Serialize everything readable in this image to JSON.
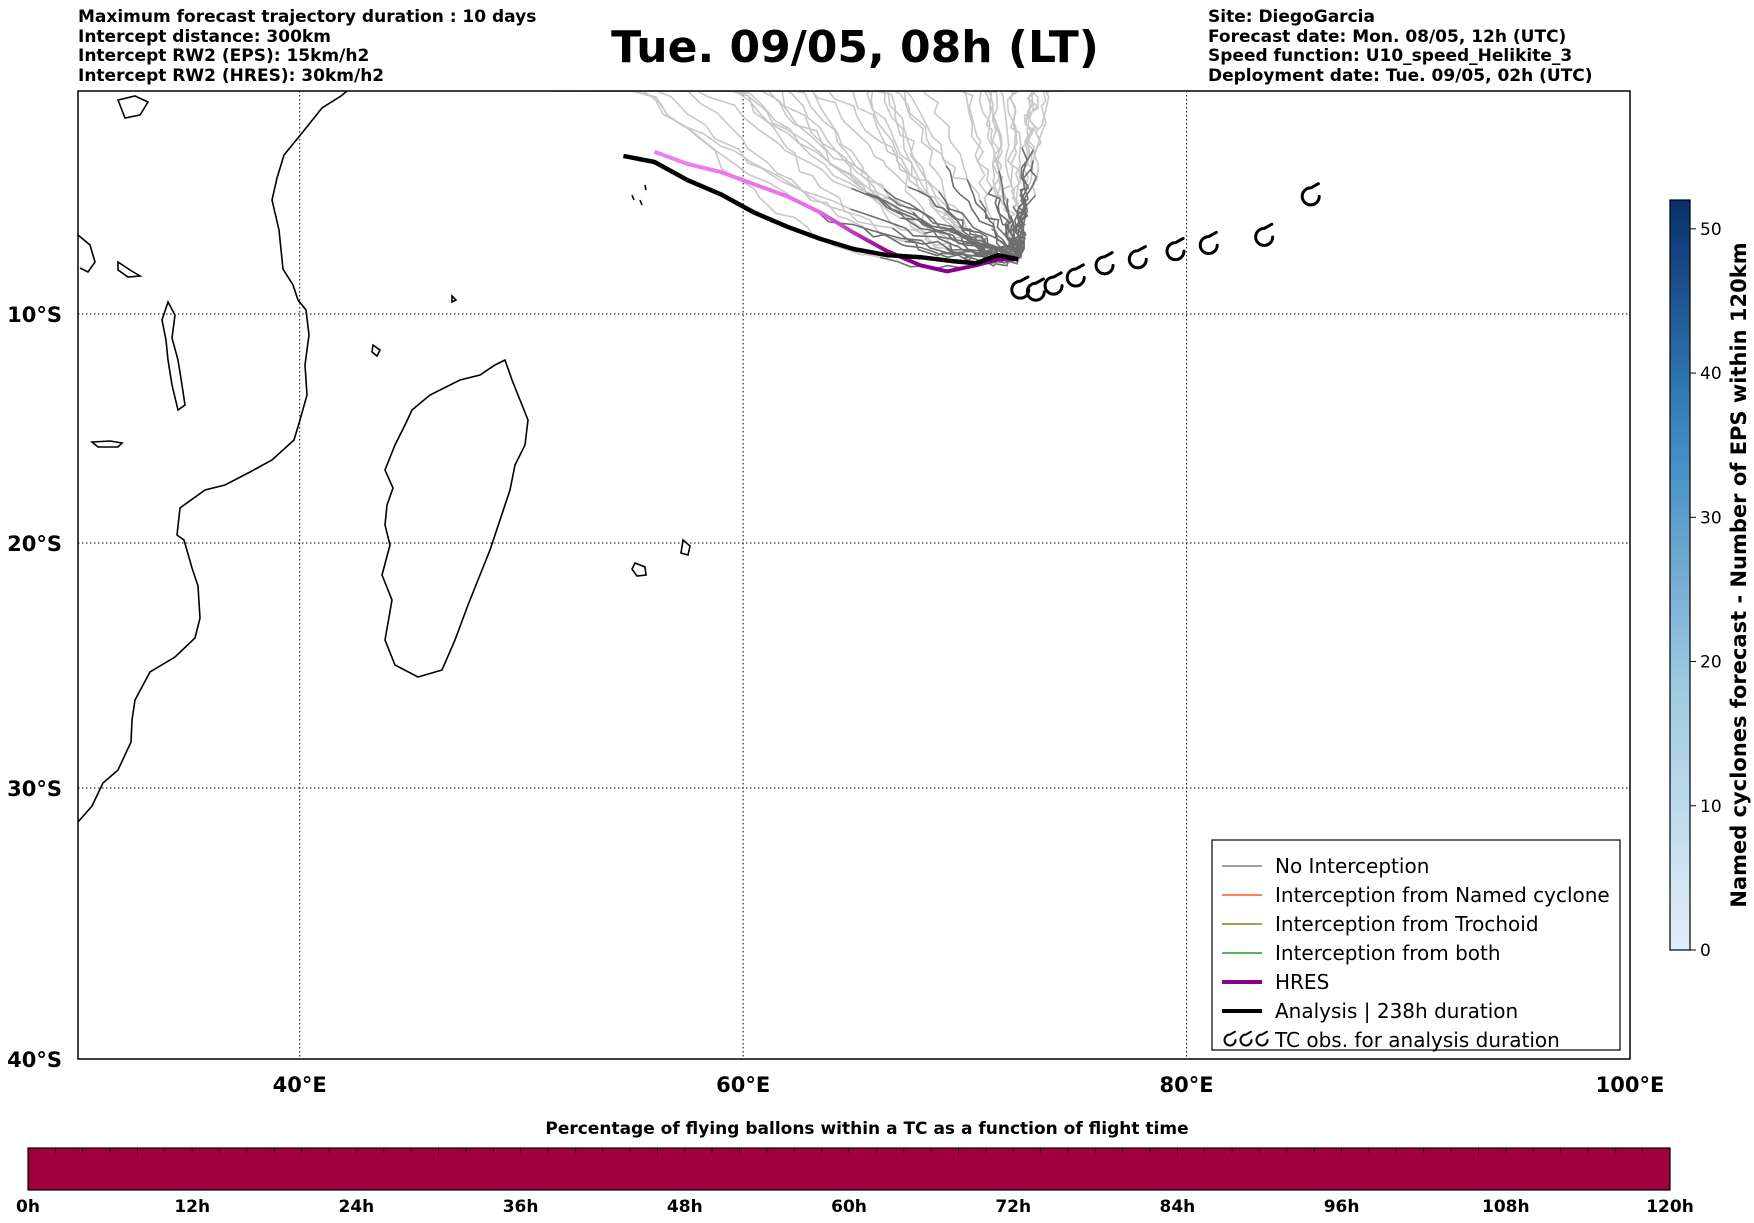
{
  "header_left": {
    "line1": "Maximum forecast trajectory duration : 10 days",
    "line2": "Intercept distance: 300km",
    "line3": "Intercept RW2 (EPS):  15km/h2",
    "line4": "Intercept RW2 (HRES): 30km/h2"
  },
  "title": "Tue. 09/05, 08h (LT)",
  "header_right": {
    "line1": "Site: DiegoGarcia",
    "line2": "Forecast date: Mon. 08/05, 12h (UTC)",
    "line3": "Speed function: U10_speed_Helikite_3",
    "line4": "Deployment date: Tue. 09/05, 02h (UTC)"
  },
  "map": {
    "lon_range": [
      30,
      100
    ],
    "lat_range": [
      -40,
      1
    ],
    "lon_ticks": [
      {
        "value": 40,
        "label": "40°E"
      },
      {
        "value": 60,
        "label": "60°E"
      },
      {
        "value": 80,
        "label": "80°E"
      },
      {
        "value": 100,
        "label": "100°E"
      }
    ],
    "lat_ticks": [
      {
        "value": -10,
        "label": "10°S"
      },
      {
        "value": -20,
        "label": "20°S"
      },
      {
        "value": -30,
        "label": "30°S"
      },
      {
        "value": -40,
        "label": "40°S"
      }
    ],
    "gridlines": "dotted"
  },
  "legend": {
    "position": "lower-right",
    "items": [
      {
        "label": "No Interception",
        "color": "#808080"
      },
      {
        "label": "Interception from Named cyclone",
        "color": "#ff5a1f"
      },
      {
        "label": "Interception from Trochoid",
        "color": "#8b7d1a"
      },
      {
        "label": "Interception from both",
        "color": "#1f9a1f"
      },
      {
        "label": "HRES",
        "color": "#8b008b"
      },
      {
        "label": "Analysis | 238h duration",
        "color": "#000000"
      },
      {
        "label": "TC obs. for analysis duration",
        "color": "#000000",
        "icon": "cyclone-symbol-icon"
      }
    ]
  },
  "colorbar": {
    "label": "Named cyclones forecast - Number of EPS within 120km",
    "ticks": [
      "0",
      "10",
      "20",
      "30",
      "40",
      "50"
    ],
    "min": 0,
    "max": 52,
    "color_low": "#e3eef9",
    "color_high": "#08306b"
  },
  "bottom_bar": {
    "title": "Percentage of flying ballons within a TC as a function of flight time",
    "color": "#a0003c",
    "ticks": [
      "0h",
      "12h",
      "24h",
      "36h",
      "48h",
      "60h",
      "72h",
      "84h",
      "96h",
      "108h",
      "120h"
    ]
  },
  "chart_data": {
    "type": "trajectory-map",
    "site": "DiegoGarcia",
    "start": {
      "lon": 72.4,
      "lat": -7.3
    },
    "analysis_track": [
      [
        72.4,
        -7.3
      ],
      [
        71.5,
        -7.1
      ],
      [
        70.5,
        -7.5
      ],
      [
        69.5,
        -7.4
      ],
      [
        68,
        -7.2
      ],
      [
        66.5,
        -7.1
      ],
      [
        65,
        -6.8
      ],
      [
        63.5,
        -6.3
      ],
      [
        62,
        -5.7
      ],
      [
        60.5,
        -5.0
      ],
      [
        59,
        -4.1
      ],
      [
        57.5,
        -3.4
      ],
      [
        56,
        -2.5
      ],
      [
        54.6,
        -2.2
      ]
    ],
    "hres_track": [
      [
        72.4,
        -7.3
      ],
      [
        71.5,
        -7.3
      ],
      [
        70.5,
        -7.6
      ],
      [
        69.2,
        -7.9
      ],
      [
        68,
        -7.6
      ],
      [
        66.5,
        -6.9
      ],
      [
        65,
        -6.0
      ],
      [
        63.5,
        -5.0
      ],
      [
        62,
        -4.2
      ],
      [
        60.5,
        -3.6
      ],
      [
        59,
        -3.0
      ],
      [
        57.5,
        -2.6
      ],
      [
        56,
        -2.0
      ]
    ],
    "tc_observations": [
      [
        72.5,
        -8.8
      ],
      [
        73.2,
        -8.9
      ],
      [
        74,
        -8.6
      ],
      [
        75,
        -8.2
      ],
      [
        76.3,
        -7.6
      ],
      [
        77.8,
        -7.3
      ],
      [
        79.5,
        -6.9
      ],
      [
        81,
        -6.6
      ],
      [
        83.5,
        -6.2
      ],
      [
        85.6,
        -4.2
      ]
    ],
    "eps_summary": {
      "ensemble_members": 51,
      "interception": "none"
    }
  }
}
